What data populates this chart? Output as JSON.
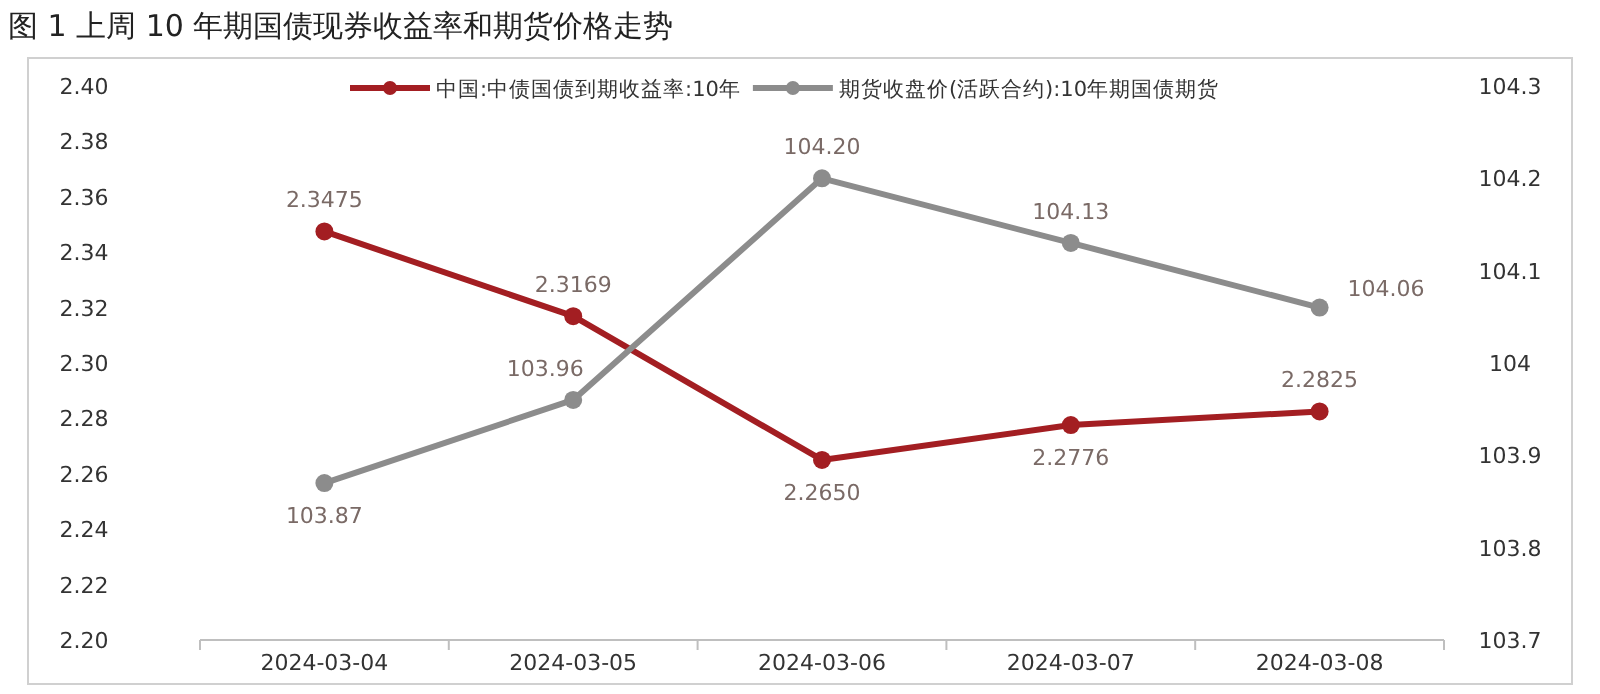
{
  "chart_data": {
    "type": "line",
    "title": "图 1  上周 10 年期国债现券收益率和期货价格走势",
    "categories": [
      "2024-03-04",
      "2024-03-05",
      "2024-03-06",
      "2024-03-07",
      "2024-03-08"
    ],
    "series": [
      {
        "name": "中国:中债国债到期收益率:10年",
        "color": "#a31e22",
        "values": [
          2.3475,
          2.3169,
          2.265,
          2.2776,
          2.2825
        ],
        "value_labels": [
          "2.3475",
          "2.3169",
          "2.2650",
          "2.2776",
          "2.2825"
        ]
      },
      {
        "name": "期货收盘价(活跃合约):10年期国债期货",
        "color": "#8c8c8c",
        "axis": "y2",
        "values": [
          103.87,
          103.96,
          104.2,
          104.13,
          104.06
        ],
        "value_labels": [
          "103.87",
          "103.96",
          "104.20",
          "104.13",
          "104.06"
        ]
      }
    ],
    "ylim": [
      2.2,
      2.4
    ],
    "yticks": [
      {
        "value": 2.2,
        "label": "2.20"
      },
      {
        "value": 2.22,
        "label": "2.22"
      },
      {
        "value": 2.24,
        "label": "2.24"
      },
      {
        "value": 2.26,
        "label": "2.26"
      },
      {
        "value": 2.28,
        "label": "2.28"
      },
      {
        "value": 2.3,
        "label": "2.30"
      },
      {
        "value": 2.32,
        "label": "2.32"
      },
      {
        "value": 2.34,
        "label": "2.34"
      },
      {
        "value": 2.36,
        "label": "2.36"
      },
      {
        "value": 2.38,
        "label": "2.38"
      },
      {
        "value": 2.4,
        "label": "2.40"
      }
    ],
    "y2lim": [
      103.7,
      104.3
    ],
    "y2ticks": [
      103.7,
      103.8,
      103.9,
      104,
      104.1,
      104.2,
      104.3
    ],
    "legend": "top",
    "marker": "circle",
    "line_style": "solid",
    "grid": false
  }
}
